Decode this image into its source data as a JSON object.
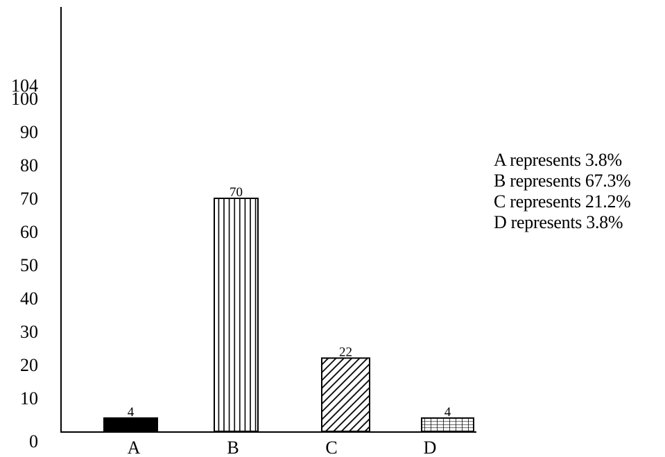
{
  "chart_data": {
    "type": "bar",
    "categories": [
      "A",
      "B",
      "C",
      "D"
    ],
    "values": [
      4,
      70,
      22,
      4
    ],
    "data_labels": [
      "4",
      "70",
      "22",
      "4"
    ],
    "y_ticks": [
      "0",
      "10",
      "20",
      "30",
      "40",
      "50",
      "60",
      "70",
      "80",
      "90",
      "100",
      "104"
    ],
    "y_tick_values": [
      0,
      10,
      20,
      30,
      40,
      50,
      60,
      70,
      80,
      90,
      100,
      104
    ],
    "ylim": [
      0,
      104
    ],
    "title": "",
    "xlabel": "",
    "ylabel": "",
    "grid": false,
    "patterns": [
      "solid",
      "vertical-lines",
      "diagonal-hatch",
      "grid"
    ],
    "legend_position": "right",
    "legend": [
      "A represents 3.8%",
      "B represents 67.3%",
      "C represents 21.2%",
      "D represents 3.8%"
    ]
  }
}
